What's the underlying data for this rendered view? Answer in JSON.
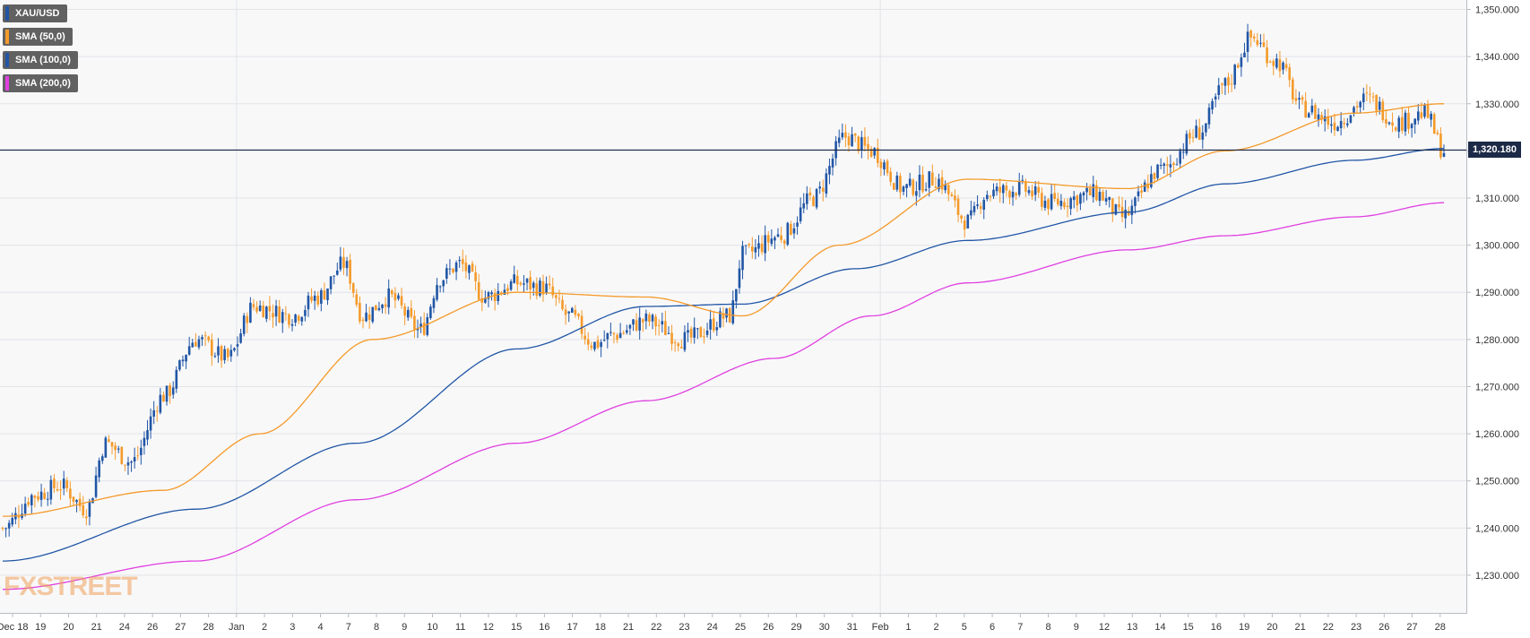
{
  "chart_data": {
    "type": "candlestick",
    "symbol": "XAU/USD",
    "ylim": [
      1222000,
      1352000
    ],
    "current_price": 1320180,
    "current_price_label": "1,320.180",
    "y_ticks": [
      1230000,
      1240000,
      1250000,
      1260000,
      1270000,
      1280000,
      1290000,
      1300000,
      1310000,
      1320000,
      1330000,
      1340000,
      1350000
    ],
    "y_tick_labels": [
      "1,230.000",
      "1,240.000",
      "1,250.000",
      "1,260.000",
      "1,270.000",
      "1,280.000",
      "1,290.000",
      "1,300.000",
      "1,310.000",
      "1,320.000",
      "1,330.000",
      "1,340.000",
      "1,350.000"
    ],
    "x_labels": [
      "Dec 18",
      "19",
      "20",
      "21",
      "24",
      "26",
      "27",
      "28",
      "Jan",
      "2",
      "3",
      "4",
      "7",
      "8",
      "9",
      "10",
      "11",
      "12",
      "15",
      "16",
      "17",
      "18",
      "21",
      "22",
      "23",
      "24",
      "25",
      "26",
      "29",
      "30",
      "31",
      "Feb",
      "1",
      "2",
      "5",
      "6",
      "7",
      "8",
      "9",
      "12",
      "13",
      "14",
      "15",
      "16",
      "19",
      "20",
      "21",
      "22",
      "23",
      "26",
      "27",
      "28"
    ],
    "legend": [
      {
        "label": "XAU/USD",
        "color": "#2156a5"
      },
      {
        "label": "SMA (50,0)",
        "color": "#f49a2a"
      },
      {
        "label": "SMA (100,0)",
        "color": "#2156a5"
      },
      {
        "label": "SMA (200,0)",
        "color": "#e040e0"
      }
    ],
    "colors": {
      "up": "#2156a5",
      "down": "#f49a2a",
      "sma50": "#f49a2a",
      "sma100": "#2156a5",
      "sma200": "#e040e0",
      "grid": "#e2e4e8",
      "price_line": "#1c2a47"
    },
    "anchors": [
      [
        0,
        1240000
      ],
      [
        10,
        1247000
      ],
      [
        18,
        1249000
      ],
      [
        26,
        1244000
      ],
      [
        32,
        1258000
      ],
      [
        40,
        1254000
      ],
      [
        50,
        1268000
      ],
      [
        60,
        1280000
      ],
      [
        70,
        1276000
      ],
      [
        78,
        1287000
      ],
      [
        90,
        1285000
      ],
      [
        98,
        1289000
      ],
      [
        106,
        1296000
      ],
      [
        112,
        1285000
      ],
      [
        120,
        1289000
      ],
      [
        130,
        1282000
      ],
      [
        136,
        1293000
      ],
      [
        142,
        1296000
      ],
      [
        150,
        1289000
      ],
      [
        160,
        1292000
      ],
      [
        168,
        1291000
      ],
      [
        176,
        1285000
      ],
      [
        184,
        1279000
      ],
      [
        190,
        1281000
      ],
      [
        200,
        1284000
      ],
      [
        212,
        1280000
      ],
      [
        226,
        1285000
      ],
      [
        230,
        1298000
      ],
      [
        242,
        1302000
      ],
      [
        252,
        1310000
      ],
      [
        262,
        1323000
      ],
      [
        270,
        1320000
      ],
      [
        280,
        1312000
      ],
      [
        290,
        1314000
      ],
      [
        300,
        1305000
      ],
      [
        306,
        1311000
      ],
      [
        316,
        1312000
      ],
      [
        326,
        1309000
      ],
      [
        340,
        1311000
      ],
      [
        348,
        1306000
      ],
      [
        360,
        1316000
      ],
      [
        372,
        1324000
      ],
      [
        380,
        1334000
      ],
      [
        388,
        1344000
      ],
      [
        396,
        1339000
      ],
      [
        404,
        1329000
      ],
      [
        414,
        1326000
      ],
      [
        424,
        1331000
      ],
      [
        434,
        1326000
      ],
      [
        442,
        1328000
      ],
      [
        448,
        1320000
      ]
    ],
    "sma50": [
      [
        0,
        1242500
      ],
      [
        50,
        1248000
      ],
      [
        80,
        1260000
      ],
      [
        115,
        1280000
      ],
      [
        160,
        1290000
      ],
      [
        200,
        1289000
      ],
      [
        230,
        1285000
      ],
      [
        260,
        1300000
      ],
      [
        300,
        1314000
      ],
      [
        350,
        1312000
      ],
      [
        380,
        1320000
      ],
      [
        420,
        1328000
      ],
      [
        448,
        1330000
      ]
    ],
    "sma100": [
      [
        0,
        1233000
      ],
      [
        60,
        1244000
      ],
      [
        110,
        1258000
      ],
      [
        160,
        1278000
      ],
      [
        200,
        1287000
      ],
      [
        230,
        1287500
      ],
      [
        265,
        1295000
      ],
      [
        300,
        1301000
      ],
      [
        350,
        1307000
      ],
      [
        380,
        1313000
      ],
      [
        420,
        1318000
      ],
      [
        448,
        1320500
      ]
    ],
    "sma200": [
      [
        0,
        1227000
      ],
      [
        60,
        1233000
      ],
      [
        110,
        1246000
      ],
      [
        160,
        1258000
      ],
      [
        200,
        1267000
      ],
      [
        240,
        1276000
      ],
      [
        270,
        1285000
      ],
      [
        300,
        1292000
      ],
      [
        350,
        1299000
      ],
      [
        380,
        1302000
      ],
      [
        420,
        1306000
      ],
      [
        448,
        1309000
      ]
    ]
  },
  "watermark": "FXSTREET"
}
